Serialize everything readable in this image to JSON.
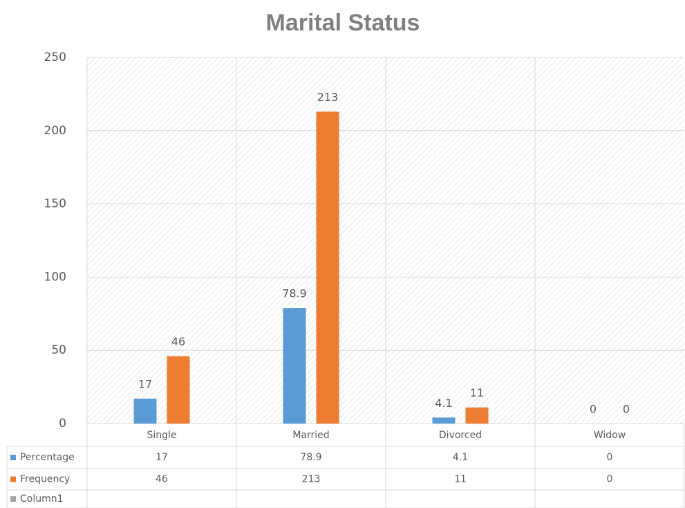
{
  "chart_data": {
    "type": "bar",
    "title": "Marital Status",
    "categories": [
      "Single",
      "Married",
      "Divorced",
      "Widow"
    ],
    "series": [
      {
        "name": "Percentage",
        "color": "#5b9bd5",
        "values": [
          17,
          78.9,
          4.1,
          0
        ]
      },
      {
        "name": "Frequency",
        "color": "#ed7d31",
        "values": [
          46,
          213,
          11,
          0
        ]
      },
      {
        "name": "Column1",
        "color": "#a5a5a5",
        "values": [
          null,
          null,
          null,
          null
        ]
      }
    ],
    "ylim": [
      0,
      250
    ],
    "yticks": [
      0,
      50,
      100,
      150,
      200,
      250
    ],
    "grid": true,
    "data_table": true
  }
}
